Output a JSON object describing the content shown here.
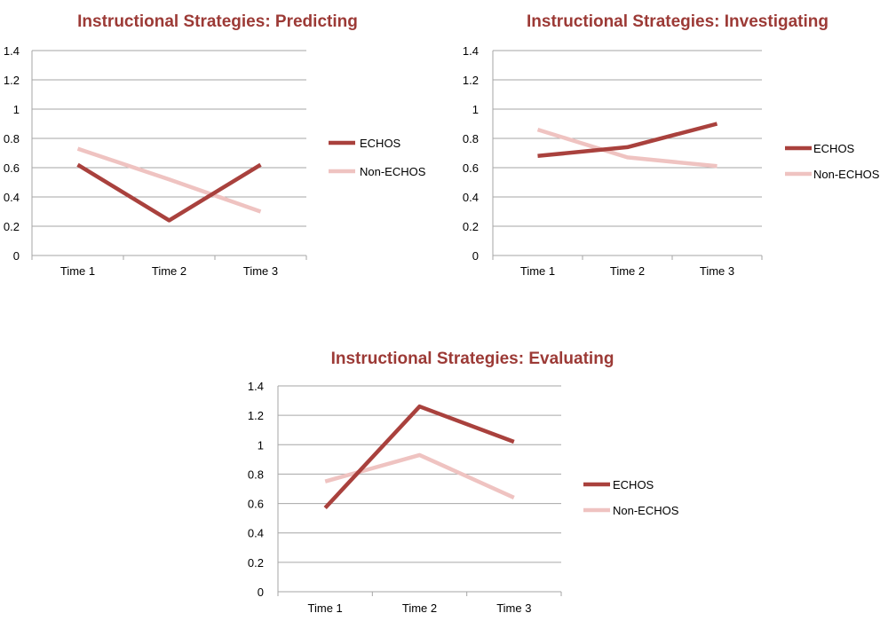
{
  "colors": {
    "title": "#9c3a36",
    "echos": "#a9413d",
    "non_echos": "#efc3c1"
  },
  "chart_data": [
    {
      "type": "line",
      "title": "Instructional Strategies: Predicting",
      "categories": [
        "Time 1",
        "Time 2",
        "Time 3"
      ],
      "ylim": [
        0,
        1.4
      ],
      "yticks": [
        "0",
        "0.2",
        "0.4",
        "0.6",
        "0.8",
        "1",
        "1.2",
        "1.4"
      ],
      "grid": true,
      "legend": "right",
      "series": [
        {
          "name": "ECHOS",
          "values": [
            0.62,
            0.24,
            0.62
          ]
        },
        {
          "name": "Non-ECHOS",
          "values": [
            0.73,
            0.52,
            0.3
          ]
        }
      ]
    },
    {
      "type": "line",
      "title": "Instructional Strategies: Investigating",
      "categories": [
        "Time 1",
        "Time 2",
        "Time 3"
      ],
      "ylim": [
        0,
        1.4
      ],
      "yticks": [
        "0",
        "0.2",
        "0.4",
        "0.6",
        "0.8",
        "1",
        "1.2",
        "1.4"
      ],
      "grid": true,
      "legend": "right",
      "series": [
        {
          "name": "ECHOS",
          "values": [
            0.68,
            0.74,
            0.9
          ]
        },
        {
          "name": "Non-ECHOS",
          "values": [
            0.86,
            0.67,
            0.61
          ]
        }
      ]
    },
    {
      "type": "line",
      "title": "Instructional Strategies: Evaluating",
      "categories": [
        "Time 1",
        "Time 2",
        "Time 3"
      ],
      "ylim": [
        0,
        1.4
      ],
      "yticks": [
        "0",
        "0.2",
        "0.4",
        "0.6",
        "0.8",
        "1",
        "1.2",
        "1.4"
      ],
      "grid": true,
      "legend": "right",
      "series": [
        {
          "name": "ECHOS",
          "values": [
            0.57,
            1.26,
            1.02
          ]
        },
        {
          "name": "Non-ECHOS",
          "values": [
            0.75,
            0.93,
            0.64
          ]
        }
      ]
    }
  ]
}
